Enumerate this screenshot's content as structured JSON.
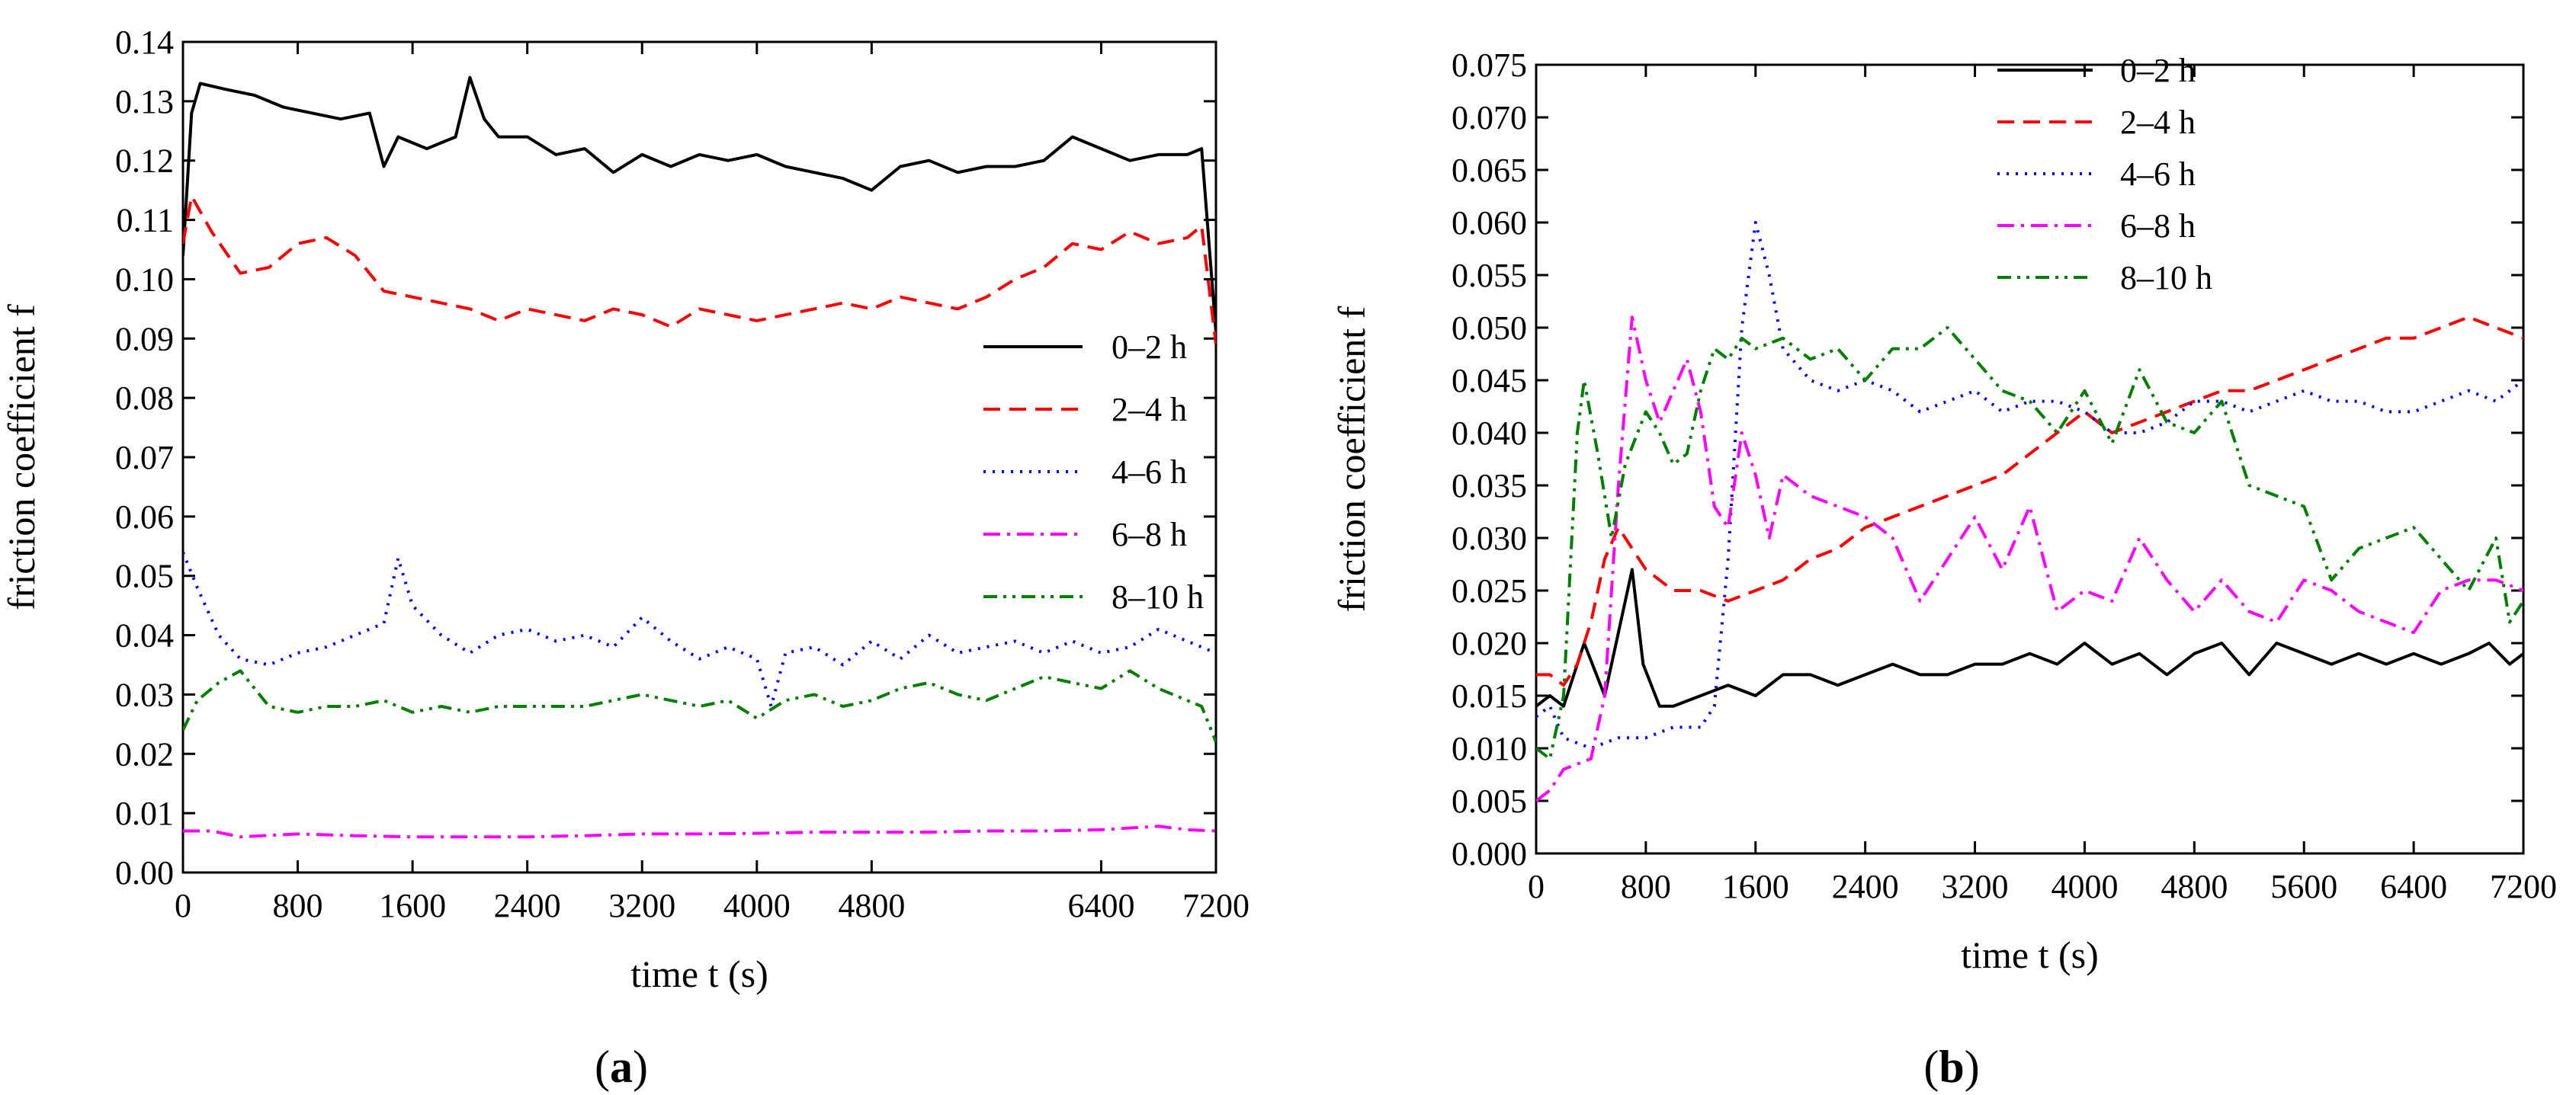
{
  "figure_title": "",
  "chart_data": [
    {
      "panel": "a",
      "panel_label": "(a)",
      "type": "line",
      "xlabel": "time t (s)",
      "ylabel": "friction coefficient f",
      "xlim": [
        0,
        7200
      ],
      "ylim": [
        0,
        0.14
      ],
      "xticks": [
        0,
        800,
        1600,
        2400,
        3200,
        4000,
        4800,
        6400,
        7200
      ],
      "xtick_labels": [
        "0",
        "800",
        "1600",
        "2400",
        "3200",
        "4000",
        "4800",
        "6400",
        "7200"
      ],
      "yticks": [
        0,
        0.01,
        0.02,
        0.03,
        0.04,
        0.05,
        0.06,
        0.07,
        0.08,
        0.09,
        0.1,
        0.11,
        0.12,
        0.13,
        0.14
      ],
      "ytick_labels": [
        "0.00",
        "0.01",
        "0.02",
        "0.03",
        "0.04",
        "0.05",
        "0.06",
        "0.07",
        "0.08",
        "0.09",
        "0.10",
        "0.11",
        "0.12",
        "0.13",
        "0.14"
      ],
      "legend_position": "right-middle",
      "series": [
        {
          "name": "0–2 h",
          "color": "#000000",
          "dash": "solid",
          "x": [
            0,
            60,
            120,
            300,
            500,
            700,
            900,
            1100,
            1300,
            1400,
            1500,
            1700,
            1900,
            2000,
            2100,
            2200,
            2400,
            2600,
            2800,
            3000,
            3200,
            3400,
            3600,
            3800,
            4000,
            4200,
            4400,
            4600,
            4800,
            5000,
            5200,
            5400,
            5600,
            5800,
            6000,
            6200,
            6400,
            6600,
            6800,
            7000,
            7100,
            7200
          ],
          "y": [
            0.104,
            0.128,
            0.133,
            0.132,
            0.131,
            0.129,
            0.128,
            0.127,
            0.128,
            0.119,
            0.124,
            0.122,
            0.124,
            0.134,
            0.127,
            0.124,
            0.124,
            0.121,
            0.122,
            0.118,
            0.121,
            0.119,
            0.121,
            0.12,
            0.121,
            0.119,
            0.118,
            0.117,
            0.115,
            0.119,
            0.12,
            0.118,
            0.119,
            0.119,
            0.12,
            0.124,
            0.122,
            0.12,
            0.121,
            0.121,
            0.122,
            0.091
          ]
        },
        {
          "name": "2–4 h",
          "color": "#ff0000",
          "dash": "dashed",
          "x": [
            0,
            60,
            200,
            400,
            600,
            800,
            1000,
            1200,
            1400,
            1600,
            1800,
            2000,
            2200,
            2400,
            2600,
            2800,
            3000,
            3200,
            3400,
            3600,
            3800,
            4000,
            4200,
            4400,
            4600,
            4800,
            5000,
            5200,
            5400,
            5600,
            5800,
            6000,
            6200,
            6400,
            6600,
            6800,
            7000,
            7100,
            7200
          ],
          "y": [
            0.106,
            0.114,
            0.108,
            0.101,
            0.102,
            0.106,
            0.107,
            0.104,
            0.098,
            0.097,
            0.096,
            0.095,
            0.093,
            0.095,
            0.094,
            0.093,
            0.095,
            0.094,
            0.092,
            0.095,
            0.094,
            0.093,
            0.094,
            0.095,
            0.096,
            0.095,
            0.097,
            0.096,
            0.095,
            0.097,
            0.1,
            0.102,
            0.106,
            0.105,
            0.108,
            0.106,
            0.107,
            0.109,
            0.089
          ]
        },
        {
          "name": "4–6 h",
          "color": "#0000ff",
          "dash": "dotted",
          "x": [
            0,
            100,
            250,
            400,
            600,
            800,
            1000,
            1200,
            1400,
            1500,
            1600,
            1800,
            2000,
            2200,
            2400,
            2600,
            2800,
            3000,
            3200,
            3400,
            3600,
            3800,
            4000,
            4100,
            4200,
            4400,
            4600,
            4800,
            5000,
            5200,
            5400,
            5600,
            5800,
            6000,
            6200,
            6400,
            6600,
            6800,
            7000,
            7200
          ],
          "y": [
            0.054,
            0.048,
            0.04,
            0.036,
            0.035,
            0.037,
            0.038,
            0.04,
            0.042,
            0.053,
            0.045,
            0.04,
            0.037,
            0.04,
            0.041,
            0.039,
            0.04,
            0.038,
            0.043,
            0.039,
            0.036,
            0.038,
            0.036,
            0.028,
            0.037,
            0.038,
            0.035,
            0.039,
            0.036,
            0.04,
            0.037,
            0.038,
            0.039,
            0.037,
            0.039,
            0.037,
            0.038,
            0.041,
            0.039,
            0.037
          ]
        },
        {
          "name": "6–8 h",
          "color": "#ff00ff",
          "dash": "dashdot",
          "x": [
            0,
            200,
            400,
            800,
            1200,
            1600,
            2000,
            2400,
            2800,
            3200,
            3600,
            4000,
            4400,
            4800,
            5200,
            5600,
            6000,
            6400,
            6800,
            7000,
            7200
          ],
          "y": [
            0.007,
            0.007,
            0.006,
            0.0065,
            0.0062,
            0.006,
            0.006,
            0.006,
            0.0062,
            0.0065,
            0.0065,
            0.0066,
            0.0068,
            0.0068,
            0.0068,
            0.007,
            0.007,
            0.0072,
            0.0078,
            0.0072,
            0.007
          ]
        },
        {
          "name": "8–10 h",
          "color": "#008000",
          "dash": "dashdotdot",
          "x": [
            0,
            100,
            250,
            400,
            600,
            800,
            1000,
            1200,
            1400,
            1600,
            1800,
            2000,
            2200,
            2400,
            2600,
            2800,
            3000,
            3200,
            3400,
            3600,
            3800,
            4000,
            4200,
            4400,
            4600,
            4800,
            5000,
            5200,
            5400,
            5600,
            5800,
            6000,
            6200,
            6400,
            6600,
            6800,
            7000,
            7100,
            7200
          ],
          "y": [
            0.024,
            0.029,
            0.032,
            0.034,
            0.028,
            0.027,
            0.028,
            0.028,
            0.029,
            0.027,
            0.028,
            0.027,
            0.028,
            0.028,
            0.028,
            0.028,
            0.029,
            0.03,
            0.029,
            0.028,
            0.029,
            0.026,
            0.029,
            0.03,
            0.028,
            0.029,
            0.031,
            0.032,
            0.03,
            0.029,
            0.031,
            0.033,
            0.032,
            0.031,
            0.034,
            0.031,
            0.029,
            0.028,
            0.022
          ]
        }
      ]
    },
    {
      "panel": "b",
      "panel_label": "(b)",
      "type": "line",
      "xlabel": "time t (s)",
      "ylabel": "friction coefficient f",
      "xlim": [
        0,
        7200
      ],
      "ylim": [
        0,
        0.075
      ],
      "xticks": [
        0,
        800,
        1600,
        2400,
        3200,
        4000,
        4800,
        5600,
        6400,
        7200
      ],
      "xtick_labels": [
        "0",
        "800",
        "1600",
        "2400",
        "3200",
        "4000",
        "4800",
        "5600",
        "6400",
        "7200"
      ],
      "yticks": [
        0,
        0.005,
        0.01,
        0.015,
        0.02,
        0.025,
        0.03,
        0.035,
        0.04,
        0.045,
        0.05,
        0.055,
        0.06,
        0.065,
        0.07,
        0.075
      ],
      "ytick_labels": [
        "0.000",
        "0.005",
        "0.010",
        "0.015",
        "0.020",
        "0.025",
        "0.030",
        "0.035",
        "0.040",
        "0.045",
        "0.050",
        "0.055",
        "0.060",
        "0.065",
        "0.070",
        "0.075"
      ],
      "legend_position": "top-center",
      "series": [
        {
          "name": "0–2 h",
          "color": "#000000",
          "dash": "solid",
          "x": [
            0,
            100,
            200,
            350,
            500,
            600,
            700,
            780,
            900,
            1000,
            1200,
            1400,
            1600,
            1800,
            2000,
            2200,
            2400,
            2600,
            2800,
            3000,
            3200,
            3400,
            3600,
            3800,
            4000,
            4200,
            4400,
            4600,
            4800,
            5000,
            5200,
            5400,
            5600,
            5800,
            6000,
            6200,
            6400,
            6600,
            6800,
            6950,
            7100,
            7200
          ],
          "y": [
            0.014,
            0.015,
            0.014,
            0.02,
            0.015,
            0.021,
            0.027,
            0.018,
            0.014,
            0.014,
            0.015,
            0.016,
            0.015,
            0.017,
            0.017,
            0.016,
            0.017,
            0.018,
            0.017,
            0.017,
            0.018,
            0.018,
            0.019,
            0.018,
            0.02,
            0.018,
            0.019,
            0.017,
            0.019,
            0.02,
            0.017,
            0.02,
            0.019,
            0.018,
            0.019,
            0.018,
            0.019,
            0.018,
            0.019,
            0.02,
            0.018,
            0.019
          ]
        },
        {
          "name": "2–4 h",
          "color": "#ff0000",
          "dash": "dashed",
          "x": [
            0,
            100,
            200,
            300,
            400,
            500,
            600,
            800,
            1000,
            1200,
            1400,
            1600,
            1800,
            2000,
            2200,
            2400,
            2600,
            2800,
            3000,
            3200,
            3400,
            3600,
            3800,
            4000,
            4200,
            4400,
            4600,
            4800,
            5000,
            5200,
            5400,
            5600,
            5800,
            6000,
            6200,
            6400,
            6600,
            6800,
            7000,
            7200
          ],
          "y": [
            0.017,
            0.017,
            0.016,
            0.018,
            0.022,
            0.028,
            0.031,
            0.027,
            0.025,
            0.025,
            0.024,
            0.025,
            0.026,
            0.028,
            0.029,
            0.031,
            0.032,
            0.033,
            0.034,
            0.035,
            0.036,
            0.038,
            0.04,
            0.042,
            0.04,
            0.041,
            0.042,
            0.043,
            0.044,
            0.044,
            0.045,
            0.046,
            0.047,
            0.048,
            0.049,
            0.049,
            0.05,
            0.051,
            0.05,
            0.049
          ]
        },
        {
          "name": "4–6 h",
          "color": "#0000ff",
          "dash": "dotted",
          "x": [
            0,
            100,
            200,
            400,
            600,
            800,
            1000,
            1200,
            1300,
            1400,
            1500,
            1600,
            1700,
            1800,
            2000,
            2200,
            2400,
            2600,
            2800,
            3000,
            3200,
            3400,
            3600,
            3800,
            4000,
            4200,
            4400,
            4600,
            4800,
            5000,
            5200,
            5400,
            5600,
            5800,
            6000,
            6200,
            6400,
            6600,
            6800,
            7000,
            7200
          ],
          "y": [
            0.013,
            0.014,
            0.011,
            0.01,
            0.011,
            0.011,
            0.012,
            0.012,
            0.014,
            0.028,
            0.05,
            0.06,
            0.055,
            0.048,
            0.045,
            0.044,
            0.045,
            0.044,
            0.042,
            0.043,
            0.044,
            0.042,
            0.043,
            0.043,
            0.042,
            0.04,
            0.04,
            0.041,
            0.043,
            0.043,
            0.042,
            0.043,
            0.044,
            0.043,
            0.043,
            0.042,
            0.042,
            0.043,
            0.044,
            0.043,
            0.045
          ]
        },
        {
          "name": "6–8 h",
          "color": "#ff00ff",
          "dash": "dashdot",
          "x": [
            0,
            100,
            200,
            400,
            500,
            600,
            700,
            800,
            900,
            1000,
            1100,
            1200,
            1300,
            1400,
            1500,
            1600,
            1700,
            1800,
            2000,
            2200,
            2400,
            2600,
            2800,
            3000,
            3200,
            3400,
            3600,
            3800,
            4000,
            4200,
            4400,
            4600,
            4800,
            5000,
            5200,
            5400,
            5600,
            5800,
            6000,
            6200,
            6400,
            6600,
            6800,
            7000,
            7200
          ],
          "y": [
            0.005,
            0.006,
            0.008,
            0.009,
            0.015,
            0.035,
            0.051,
            0.045,
            0.041,
            0.044,
            0.047,
            0.042,
            0.033,
            0.031,
            0.04,
            0.036,
            0.03,
            0.036,
            0.034,
            0.033,
            0.032,
            0.03,
            0.024,
            0.028,
            0.032,
            0.027,
            0.033,
            0.023,
            0.025,
            0.024,
            0.03,
            0.026,
            0.023,
            0.026,
            0.023,
            0.022,
            0.026,
            0.025,
            0.023,
            0.022,
            0.021,
            0.025,
            0.026,
            0.026,
            0.025
          ]
        },
        {
          "name": "8–10 h",
          "color": "#008000",
          "dash": "dashdotdot",
          "x": [
            0,
            100,
            200,
            300,
            350,
            450,
            550,
            650,
            800,
            900,
            1000,
            1100,
            1200,
            1300,
            1400,
            1500,
            1600,
            1800,
            2000,
            2200,
            2400,
            2600,
            2800,
            3000,
            3200,
            3400,
            3600,
            3800,
            4000,
            4200,
            4400,
            4600,
            4800,
            5000,
            5200,
            5400,
            5600,
            5800,
            6000,
            6200,
            6400,
            6600,
            6800,
            7000,
            7100,
            7200
          ],
          "y": [
            0.01,
            0.009,
            0.015,
            0.04,
            0.045,
            0.038,
            0.03,
            0.037,
            0.042,
            0.04,
            0.037,
            0.038,
            0.044,
            0.048,
            0.047,
            0.049,
            0.048,
            0.049,
            0.047,
            0.048,
            0.045,
            0.048,
            0.048,
            0.05,
            0.047,
            0.044,
            0.043,
            0.04,
            0.044,
            0.039,
            0.046,
            0.041,
            0.04,
            0.043,
            0.035,
            0.034,
            0.033,
            0.026,
            0.029,
            0.03,
            0.031,
            0.028,
            0.025,
            0.03,
            0.022,
            0.024
          ]
        }
      ]
    }
  ]
}
